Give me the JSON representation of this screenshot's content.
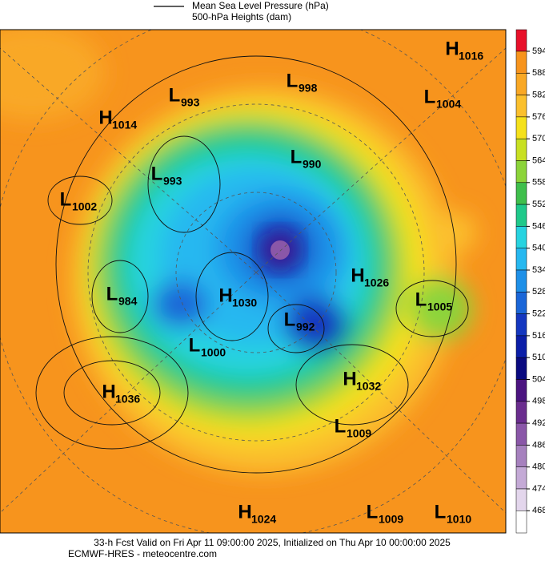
{
  "header": {
    "legend": [
      "Mean Sea Level Pressure (hPa)",
      "500-hPa Heights (dam)"
    ]
  },
  "colorbar": {
    "ticks": [
      594,
      588,
      582,
      576,
      570,
      564,
      558,
      552,
      546,
      540,
      534,
      528,
      522,
      516,
      510,
      504,
      498,
      492,
      486,
      480,
      474,
      468
    ],
    "colors": [
      "#e8102a",
      "#f7941d",
      "#f9a825",
      "#fbc02d",
      "#f5e11b",
      "#c8e022",
      "#8cd43a",
      "#3fbf4c",
      "#1fc98a",
      "#27d3e0",
      "#26b8f0",
      "#1e90e8",
      "#1a66d8",
      "#1437c0",
      "#0b1ea8",
      "#0a0a80",
      "#4b1480",
      "#6a2d8e",
      "#8a57a8",
      "#a681be",
      "#c4aad6",
      "#e3d6ec",
      "#ffffff"
    ]
  },
  "centers": [
    {
      "symbol": "H",
      "value": 1016
    },
    {
      "symbol": "L",
      "value": 998
    },
    {
      "symbol": "L",
      "value": 993
    },
    {
      "symbol": "L",
      "value": 1004
    },
    {
      "symbol": "H",
      "value": 1014
    },
    {
      "symbol": "L",
      "value": 990
    },
    {
      "symbol": "L",
      "value": 993
    },
    {
      "symbol": "L",
      "value": 1002
    },
    {
      "symbol": "H",
      "value": 1026
    },
    {
      "symbol": "L",
      "value": 1005
    },
    {
      "symbol": "L",
      "value": 984
    },
    {
      "symbol": "H",
      "value": 1030
    },
    {
      "symbol": "L",
      "value": 992
    },
    {
      "symbol": "L",
      "value": 1000
    },
    {
      "symbol": "H",
      "value": 1032
    },
    {
      "symbol": "H",
      "value": 1036
    },
    {
      "symbol": "L",
      "value": 1009
    },
    {
      "symbol": "H",
      "value": 1024
    },
    {
      "symbol": "L",
      "value": 1009
    },
    {
      "symbol": "L",
      "value": 1010
    }
  ],
  "footer": [
    "33-h Fcst Valid on Fri Apr 11 09:00:00 2025, Initialized on Thu Apr 10 00:00:00 2025",
    "ECMWF-HRES - meteocentre.com"
  ]
}
